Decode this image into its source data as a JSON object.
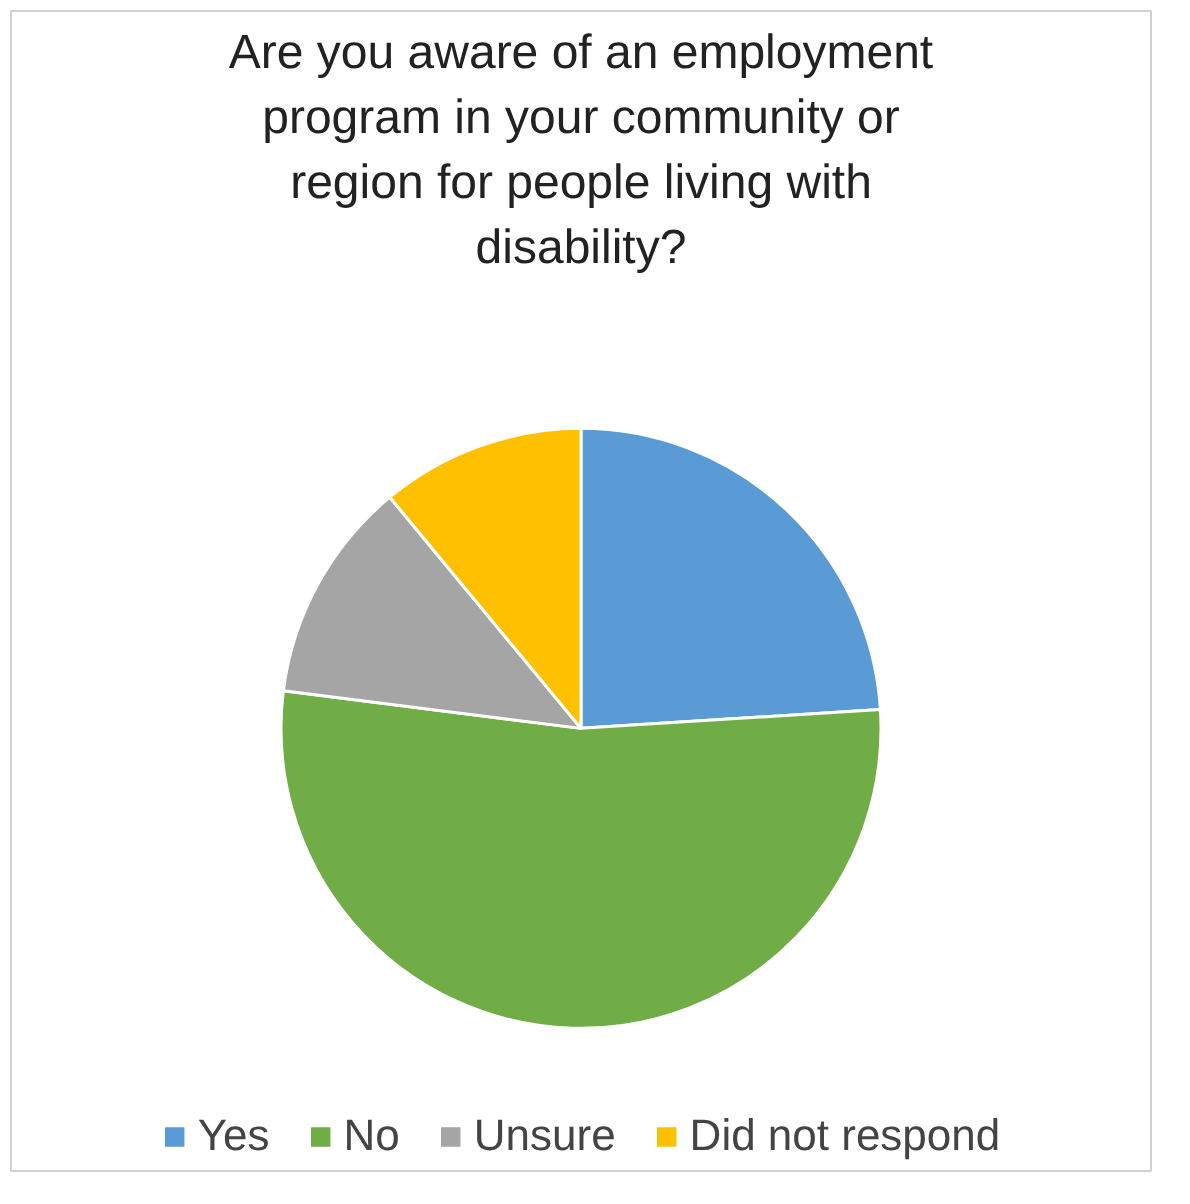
{
  "chart_data": {
    "type": "pie",
    "title": "Are you aware of an employment program in your community or region for people living with disability?",
    "categories": [
      "Yes",
      "No",
      "Unsure",
      "Did not respond"
    ],
    "values": [
      24,
      53,
      12,
      11
    ],
    "colors": [
      "#5b9bd5",
      "#70ad47",
      "#a5a5a5",
      "#ffc000"
    ],
    "legend": "bottom"
  }
}
